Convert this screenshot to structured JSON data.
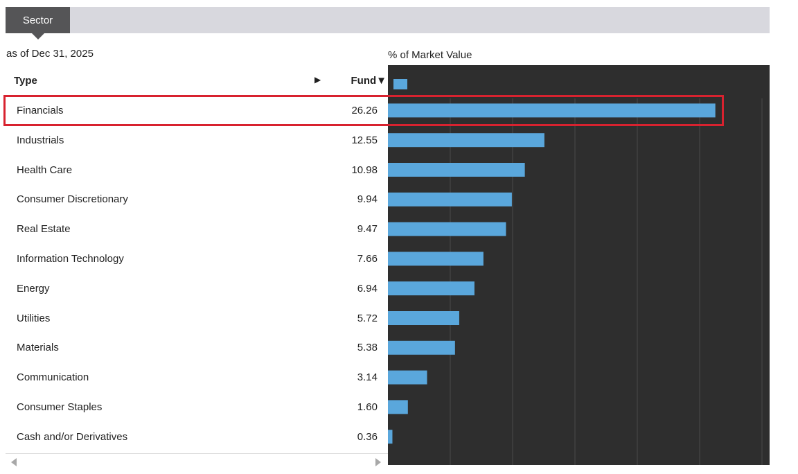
{
  "tab": {
    "label": "Sector"
  },
  "as_of": "as of Dec 31, 2025",
  "table": {
    "headers": {
      "type": "Type",
      "fund": "Fund▼",
      "expand": "▶"
    },
    "rows": [
      {
        "label": "Financials",
        "value": "26.26"
      },
      {
        "label": "Industrials",
        "value": "12.55"
      },
      {
        "label": "Health Care",
        "value": "10.98"
      },
      {
        "label": "Consumer Discretionary",
        "value": "9.94"
      },
      {
        "label": "Real Estate",
        "value": "9.47"
      },
      {
        "label": "Information Technology",
        "value": "7.66"
      },
      {
        "label": "Energy",
        "value": "6.94"
      },
      {
        "label": "Utilities",
        "value": "5.72"
      },
      {
        "label": "Materials",
        "value": "5.38"
      },
      {
        "label": "Communication",
        "value": "3.14"
      },
      {
        "label": "Consumer Staples",
        "value": "1.60"
      },
      {
        "label": "Cash and/or Derivatives",
        "value": "0.36"
      }
    ],
    "highlighted_row": "Financials"
  },
  "chart_data": {
    "type": "bar",
    "orientation": "horizontal",
    "title": "% of Market Value",
    "categories": [
      "Financials",
      "Industrials",
      "Health Care",
      "Consumer Discretionary",
      "Real Estate",
      "Information Technology",
      "Energy",
      "Utilities",
      "Materials",
      "Communication",
      "Consumer Staples",
      "Cash and/or Derivatives"
    ],
    "values": [
      26.26,
      12.55,
      10.98,
      9.94,
      9.47,
      7.66,
      6.94,
      5.72,
      5.38,
      3.14,
      1.6,
      0.36
    ],
    "xlim": [
      0,
      30
    ],
    "grid": true,
    "legend_swatch": true
  },
  "colors": {
    "bar": "#5aa7dc",
    "chart_bg": "#2e2e2e",
    "grid": "#4a4a4a",
    "highlight": "#d8222f",
    "tab_bg": "#555557",
    "tabbar_bg": "#d8d8de"
  },
  "icons": {
    "expand": "play-icon",
    "sort": "sort-down-icon",
    "scroll_left": "scroll-left-icon",
    "scroll_right": "scroll-right-icon"
  }
}
